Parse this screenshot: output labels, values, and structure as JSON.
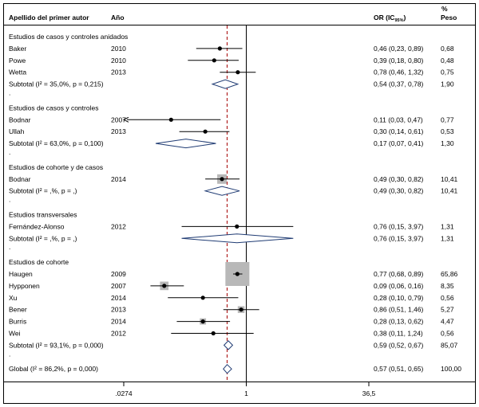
{
  "header": {
    "author": "Apellido del primer autor",
    "year": "Año",
    "or": "OR (IC",
    "or_sub": "95%",
    "or_close": ")",
    "pct": "%",
    "weight": "Peso"
  },
  "rows": [
    {
      "kind": "group",
      "label": "Estudios de casos y controles anidados"
    },
    {
      "kind": "study",
      "author": "Baker",
      "year": "2010",
      "or": 0.46,
      "lo": 0.23,
      "hi": 0.89,
      "ci_text": "0,46 (0,23, 0,89)",
      "weight": 0.68,
      "weight_text": "0,68"
    },
    {
      "kind": "study",
      "author": "Powe",
      "year": "2010",
      "or": 0.39,
      "lo": 0.18,
      "hi": 0.8,
      "ci_text": "0,39 (0,18, 0,80)",
      "weight": 0.48,
      "weight_text": "0,48"
    },
    {
      "kind": "study",
      "author": "Wetta",
      "year": "2013",
      "or": 0.78,
      "lo": 0.46,
      "hi": 1.32,
      "ci_text": "0,78 (0,46, 1,32)",
      "weight": 0.75,
      "weight_text": "0,75"
    },
    {
      "kind": "subtotal",
      "label": "Subtotal (I² = 35,0%, p = 0,215)",
      "or": 0.54,
      "lo": 0.37,
      "hi": 0.78,
      "ci_text": "0,54 (0,37, 0,78)",
      "weight_text": "1,90"
    },
    {
      "kind": "dot"
    },
    {
      "kind": "group",
      "label": "Estudios de casos y controles"
    },
    {
      "kind": "study",
      "author": "Bodnar",
      "year": "2007",
      "or": 0.11,
      "lo": 0.03,
      "hi": 0.47,
      "ci_text": "0,11 (0,03, 0,47)",
      "weight": 0.77,
      "weight_text": "0,77",
      "arrow_left": true
    },
    {
      "kind": "study",
      "author": "Ullah",
      "year": "2013",
      "or": 0.3,
      "lo": 0.14,
      "hi": 0.61,
      "ci_text": "0,30 (0,14, 0,61)",
      "weight": 0.53,
      "weight_text": "0,53"
    },
    {
      "kind": "subtotal",
      "label": "Subtotal (I² = 63,0%, p = 0,100)",
      "or": 0.17,
      "lo": 0.07,
      "hi": 0.41,
      "ci_text": "0,17 (0,07, 0,41)",
      "weight_text": "1,30"
    },
    {
      "kind": "dot"
    },
    {
      "kind": "group",
      "label": "Estudios de cohorte y de casos"
    },
    {
      "kind": "study",
      "author": "Bodnar",
      "year": "2014",
      "or": 0.49,
      "lo": 0.3,
      "hi": 0.82,
      "ci_text": "0,49 (0,30, 0,82)",
      "weight": 10.41,
      "weight_text": "10,41"
    },
    {
      "kind": "subtotal",
      "label": "Subtotal (I² = ,%, p = ,)",
      "or": 0.49,
      "lo": 0.3,
      "hi": 0.82,
      "ci_text": "0,49 (0,30, 0,82)",
      "weight_text": "10,41"
    },
    {
      "kind": "dot"
    },
    {
      "kind": "group",
      "label": "Estudios transversales"
    },
    {
      "kind": "study",
      "author": "Fernández-Alonso",
      "year": "2012",
      "or": 0.76,
      "lo": 0.15,
      "hi": 3.97,
      "ci_text": "0,76 (0,15, 3,97)",
      "weight": 1.31,
      "weight_text": "1,31"
    },
    {
      "kind": "subtotal",
      "label": "Subtotal (I² = ,%, p = ,)",
      "or": 0.76,
      "lo": 0.15,
      "hi": 3.97,
      "ci_text": "0,76 (0,15, 3,97)",
      "weight_text": "1,31"
    },
    {
      "kind": "dot"
    },
    {
      "kind": "group",
      "label": "Estudios de cohorte"
    },
    {
      "kind": "study",
      "author": "Haugen",
      "year": "2009",
      "or": 0.77,
      "lo": 0.68,
      "hi": 0.89,
      "ci_text": "0,77 (0,68, 0,89)",
      "weight": 65.86,
      "weight_text": "65,86"
    },
    {
      "kind": "study",
      "author": "Hypponen",
      "year": "2007",
      "or": 0.09,
      "lo": 0.06,
      "hi": 0.16,
      "ci_text": "0,09 (0,06, 0,16)",
      "weight": 8.35,
      "weight_text": "8,35"
    },
    {
      "kind": "study",
      "author": "Xu",
      "year": "2014",
      "or": 0.28,
      "lo": 0.1,
      "hi": 0.79,
      "ci_text": "0,28 (0,10, 0,79)",
      "weight": 0.56,
      "weight_text": "0,56"
    },
    {
      "kind": "study",
      "author": "Bener",
      "year": "2013",
      "or": 0.86,
      "lo": 0.51,
      "hi": 1.46,
      "ci_text": "0,86 (0,51, 1,46)",
      "weight": 5.27,
      "weight_text": "5,27"
    },
    {
      "kind": "study",
      "author": "Burris",
      "year": "2014",
      "or": 0.28,
      "lo": 0.13,
      "hi": 0.62,
      "ci_text": "0,28 (0,13, 0,62)",
      "weight": 4.47,
      "weight_text": "4,47"
    },
    {
      "kind": "study",
      "author": "Wei",
      "year": "2012",
      "or": 0.38,
      "lo": 0.11,
      "hi": 1.24,
      "ci_text": "0,38 (0,11, 1,24)",
      "weight": 0.56,
      "weight_text": "0,56"
    },
    {
      "kind": "subtotal",
      "label": "Subtotal (I² = 93,1%, p = 0,000)",
      "or": 0.59,
      "lo": 0.52,
      "hi": 0.67,
      "ci_text": "0,59 (0,52, 0,67)",
      "weight_text": "85,07"
    },
    {
      "kind": "dot"
    },
    {
      "kind": "overall",
      "label": "Global (I² = 86,2%, p = 0,000)",
      "or": 0.57,
      "lo": 0.51,
      "hi": 0.65,
      "ci_text": "0,57 (0,51, 0,65)",
      "weight_text": "100,00"
    }
  ],
  "chart_data": {
    "type": "forest",
    "scale": "log",
    "xlim": [
      0.0274,
      36.5
    ],
    "xticks": [
      0.0274,
      1,
      36.5
    ],
    "xtick_labels": [
      ".0274",
      "1",
      "36,5"
    ],
    "null_line": 1,
    "overall_line": 0.57,
    "colors": {
      "overall_line": "#b02020",
      "box": "#b8b8b8",
      "diamond": "#1f3b73",
      "axis": "#000000"
    }
  }
}
